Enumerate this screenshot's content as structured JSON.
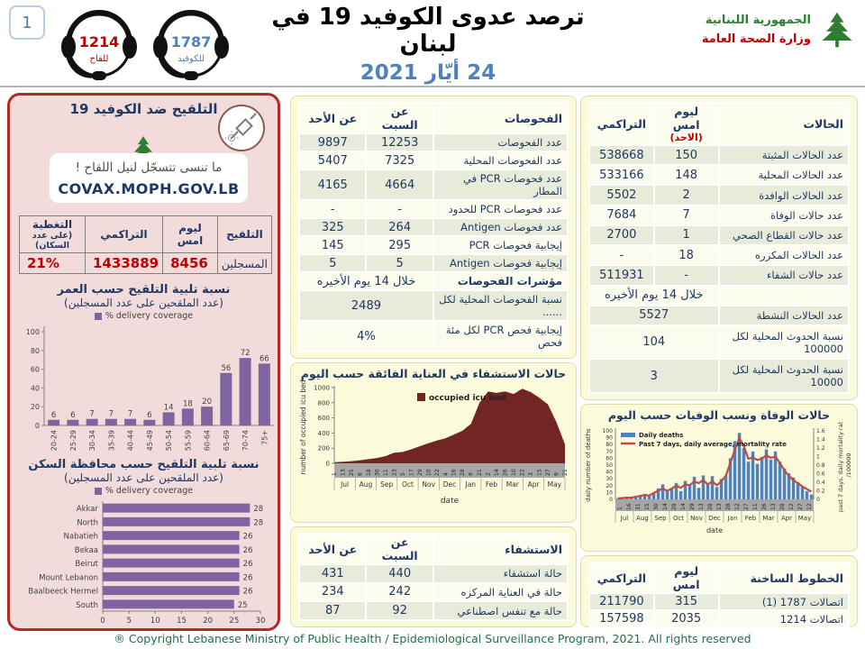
{
  "header": {
    "page_number": "1",
    "hotline_vaccine": {
      "number": "1214",
      "label": "للقاح",
      "color": "#C00000"
    },
    "hotline_covid": {
      "number": "1787",
      "label": "للكوفيد",
      "color": "#4F81BD"
    },
    "title": "ترصد عدوى الكوفيد 19 في لبنان",
    "date": "24 أيّار 2021",
    "logo_line1": "الجمهورية اللبنانية",
    "logo_line2": "وزارة الصحة العامة"
  },
  "vaccination_panel": {
    "title": "التلقيح ضد الكوفيد 19",
    "reminder_line1": "ما تنسى تتسجّل لنيل اللقاح !",
    "reminder_line2": "COVAX.MOPH.GOV.LB",
    "table": {
      "headers": [
        "التلقيح",
        "ليوم امس",
        "التراكمي",
        "التغطية"
      ],
      "coverage_note": "(على عدد السكان)",
      "row_label": "المسجلين",
      "values": [
        "8456",
        "1433889",
        "21%"
      ]
    }
  },
  "tests_table": {
    "headers": [
      "الفحوصات",
      "عن السبت",
      "عن الأحد"
    ],
    "rows": [
      {
        "label": "عدد الفحوصات",
        "v1": "12253",
        "v2": "9897"
      },
      {
        "label": "عدد الفحوصات المحلية",
        "v1": "7325",
        "v2": "5407"
      },
      {
        "label": "عدد فحوصات PCR في المطار",
        "v1": "4664",
        "v2": "4165"
      },
      {
        "label": "عدد فحوصات PCR للحدود",
        "v1": "-",
        "v2": "-"
      },
      {
        "label": "عدد فحوصات Antigen",
        "v1": "264",
        "v2": "325"
      },
      {
        "label": "إيجابية فحوصات PCR",
        "v1": "295",
        "v2": "145"
      },
      {
        "label": "إيجابية فحوصات Antigen",
        "v1": "5",
        "v2": "5"
      },
      {
        "label": "مؤشرات الفحوصات",
        "bold": true,
        "span": "خلال 14 يوم الأخيره"
      },
      {
        "label": "نسبة الفحوصات المحلية لكل ......",
        "span": "2489"
      },
      {
        "label": "إيجابية فحص PCR لكل مئة فحص",
        "span": "4%"
      }
    ]
  },
  "cases_table": {
    "headers": [
      "الحالات",
      "ليوم امس",
      "التراكمي"
    ],
    "header_sub": "(الاحد)",
    "rows": [
      {
        "label": "عدد الحالات المثبتة",
        "v1": "150",
        "v2": "538668"
      },
      {
        "label": "عدد الحالات المحلية",
        "v1": "148",
        "v2": "533166"
      },
      {
        "label": "عدد الحالات الوافدة",
        "v1": "2",
        "v2": "5502"
      },
      {
        "label": "عدد حالات الوفاة",
        "v1": "7",
        "v2": "7684"
      },
      {
        "label": "عدد حالات القطاع الصحي",
        "v1": "1",
        "v2": "2700"
      },
      {
        "label": "عدد الحالات المكرره",
        "v1": "18",
        "v2": "-"
      },
      {
        "label": "عدد حالات الشفاء",
        "v1": "-",
        "v2": "511931"
      },
      {
        "label": "",
        "span": "خلال 14 يوم الأخيره"
      },
      {
        "label": "عدد الحالات النشطة",
        "span": "5527"
      },
      {
        "label": "نسبة الحدوث المحلية لكل 100000",
        "span": "104"
      },
      {
        "label": "نسبة الحدوث المحلية لكل 10000",
        "span": "3"
      }
    ]
  },
  "hosp_table": {
    "headers": [
      "الاستشفاء",
      "عن السبت",
      "عن الأحد"
    ],
    "rows": [
      {
        "label": "حالة استشفاء",
        "v1": "440",
        "v2": "431"
      },
      {
        "label": "حالة في العناية المركزه",
        "v1": "242",
        "v2": "234"
      },
      {
        "label": "حالة مع تنفس اصطناعي",
        "v1": "92",
        "v2": "87"
      }
    ]
  },
  "hotlines_table": {
    "headers": [
      "الخطوط الساخنة",
      "ليوم امس",
      "التراكمي"
    ],
    "rows": [
      {
        "label": "اتصالات 1787 (1)",
        "v1": "315",
        "v2": "211790"
      },
      {
        "label": "اتصالات 1214",
        "v1": "2035",
        "v2": "157598"
      }
    ]
  },
  "chart_data": [
    {
      "id": "age",
      "type": "bar",
      "title": "نسبة تلبية التلقيح حسب العمر",
      "subtitle": "(عدد الملقحين على عدد المسجلين)",
      "legend": "% delivery coverage",
      "categories": [
        "20-24",
        "25-29",
        "30-34",
        "35-39",
        "40-44",
        "45-49",
        "50-54",
        "55-59",
        "60-64",
        "65-69",
        "70-74",
        "75+"
      ],
      "values": [
        6,
        6,
        7,
        7,
        7,
        6,
        14,
        18,
        20,
        56,
        72,
        66
      ],
      "ylim": [
        0,
        100
      ],
      "yticks": [
        0,
        20,
        40,
        60,
        80,
        100
      ],
      "bar_color": "#8064A2"
    },
    {
      "id": "governorate",
      "type": "bar-horizontal",
      "title": "نسبة تلبية التلقيح حسب محافظة السكن",
      "subtitle": "(عدد الملقحين على عدد المسجلين)",
      "legend": "% delivery coverage",
      "categories": [
        "Akkar",
        "North",
        "Nabatieh",
        "Bekaa",
        "Beirut",
        "Mount Lebanon",
        "Baalbeeck Hermel",
        "South"
      ],
      "values": [
        28,
        28,
        26,
        26,
        26,
        26,
        26,
        25
      ],
      "xlim": [
        0,
        30
      ],
      "xticks": [
        0,
        5,
        10,
        15,
        20,
        25,
        30
      ],
      "bar_color": "#8064A2"
    },
    {
      "id": "icu",
      "type": "area",
      "title": "حالات الاستشفاء في العناية الفائقة حسب اليوم",
      "legend": "occupied icu bed",
      "ylabel": "number of occupied icu beds",
      "xlabel": "date",
      "ylim": [
        0,
        1000
      ],
      "yticks": [
        0,
        200,
        400,
        600,
        800,
        1000
      ],
      "day_ticks": [
        "1",
        "13",
        "25",
        "6",
        "18",
        "30",
        "11",
        "23",
        "5",
        "17",
        "29",
        "10",
        "22",
        "4",
        "16",
        "28",
        "9",
        "21",
        "2",
        "14",
        "26",
        "10",
        "22",
        "3",
        "15",
        "27",
        "9",
        "21"
      ],
      "months": [
        "Jul",
        "Aug",
        "Sep",
        "Oct",
        "Nov",
        "Dec",
        "Jan",
        "Feb",
        "Mar",
        "Apr",
        "May"
      ],
      "values": [
        15,
        20,
        28,
        40,
        55,
        70,
        95,
        140,
        150,
        185,
        225,
        265,
        300,
        330,
        380,
        430,
        520,
        800,
        950,
        930,
        950,
        915,
        985,
        940,
        865,
        780,
        545,
        250
      ],
      "color": "#722523"
    },
    {
      "id": "deaths",
      "type": "combo",
      "title": "حالات الوفاة ونسب الوفيات حسب اليوم",
      "legend_bars": "Daily deaths",
      "legend_line": "Past 7 days, daily average, mortality rate",
      "ylabel_left": "daily number of deaths",
      "ylabel_right_1": "past 7 days, daily mortality rate",
      "ylabel_right_2": "/100000",
      "xlabel": "date",
      "ylim_left": [
        0,
        100
      ],
      "yticks_left": [
        0,
        10,
        20,
        30,
        40,
        50,
        60,
        70,
        80,
        90,
        100
      ],
      "ylim_right": [
        0,
        1.6
      ],
      "yticks_right": [
        0,
        0.2,
        0.4,
        0.6,
        0.8,
        1,
        1.2,
        1.4,
        1.6
      ],
      "day_ticks": [
        "1",
        "16",
        "31",
        "15",
        "30",
        "14",
        "29",
        "14",
        "29",
        "13",
        "28",
        "13",
        "28",
        "12",
        "27",
        "11",
        "26",
        "13",
        "28",
        "12",
        "27",
        "12"
      ],
      "months": [
        "Jul",
        "Aug",
        "Sep",
        "Oct",
        "Nov",
        "Dec",
        "Jan",
        "Feb",
        "Mar",
        "Apr",
        "May"
      ],
      "daily_deaths": [
        1,
        2,
        3,
        2,
        4,
        6,
        8,
        5,
        10,
        16,
        22,
        12,
        15,
        24,
        12,
        27,
        20,
        33,
        17,
        35,
        22,
        34,
        18,
        30,
        35,
        60,
        85,
        97,
        75,
        55,
        70,
        52,
        62,
        73,
        58,
        70,
        55,
        45,
        38,
        32,
        25,
        18,
        12,
        7
      ],
      "mortality_rate": [
        0.02,
        0.03,
        0.04,
        0.04,
        0.06,
        0.08,
        0.1,
        0.09,
        0.15,
        0.2,
        0.25,
        0.2,
        0.25,
        0.32,
        0.27,
        0.35,
        0.33,
        0.42,
        0.38,
        0.45,
        0.35,
        0.42,
        0.33,
        0.42,
        0.55,
        0.85,
        1.15,
        1.43,
        1.25,
        0.95,
        0.98,
        0.92,
        0.95,
        1.03,
        0.97,
        1.0,
        0.85,
        0.68,
        0.55,
        0.45,
        0.38,
        0.3,
        0.24,
        0.18
      ],
      "bar_color": "#4F81BD",
      "line_color": "#BE4B48"
    }
  ],
  "footer": {
    "copyright": "® Copyright Lebanese Ministry of Public Health / Epidemiological Surveillance Program, 2021. All rights reserved"
  }
}
